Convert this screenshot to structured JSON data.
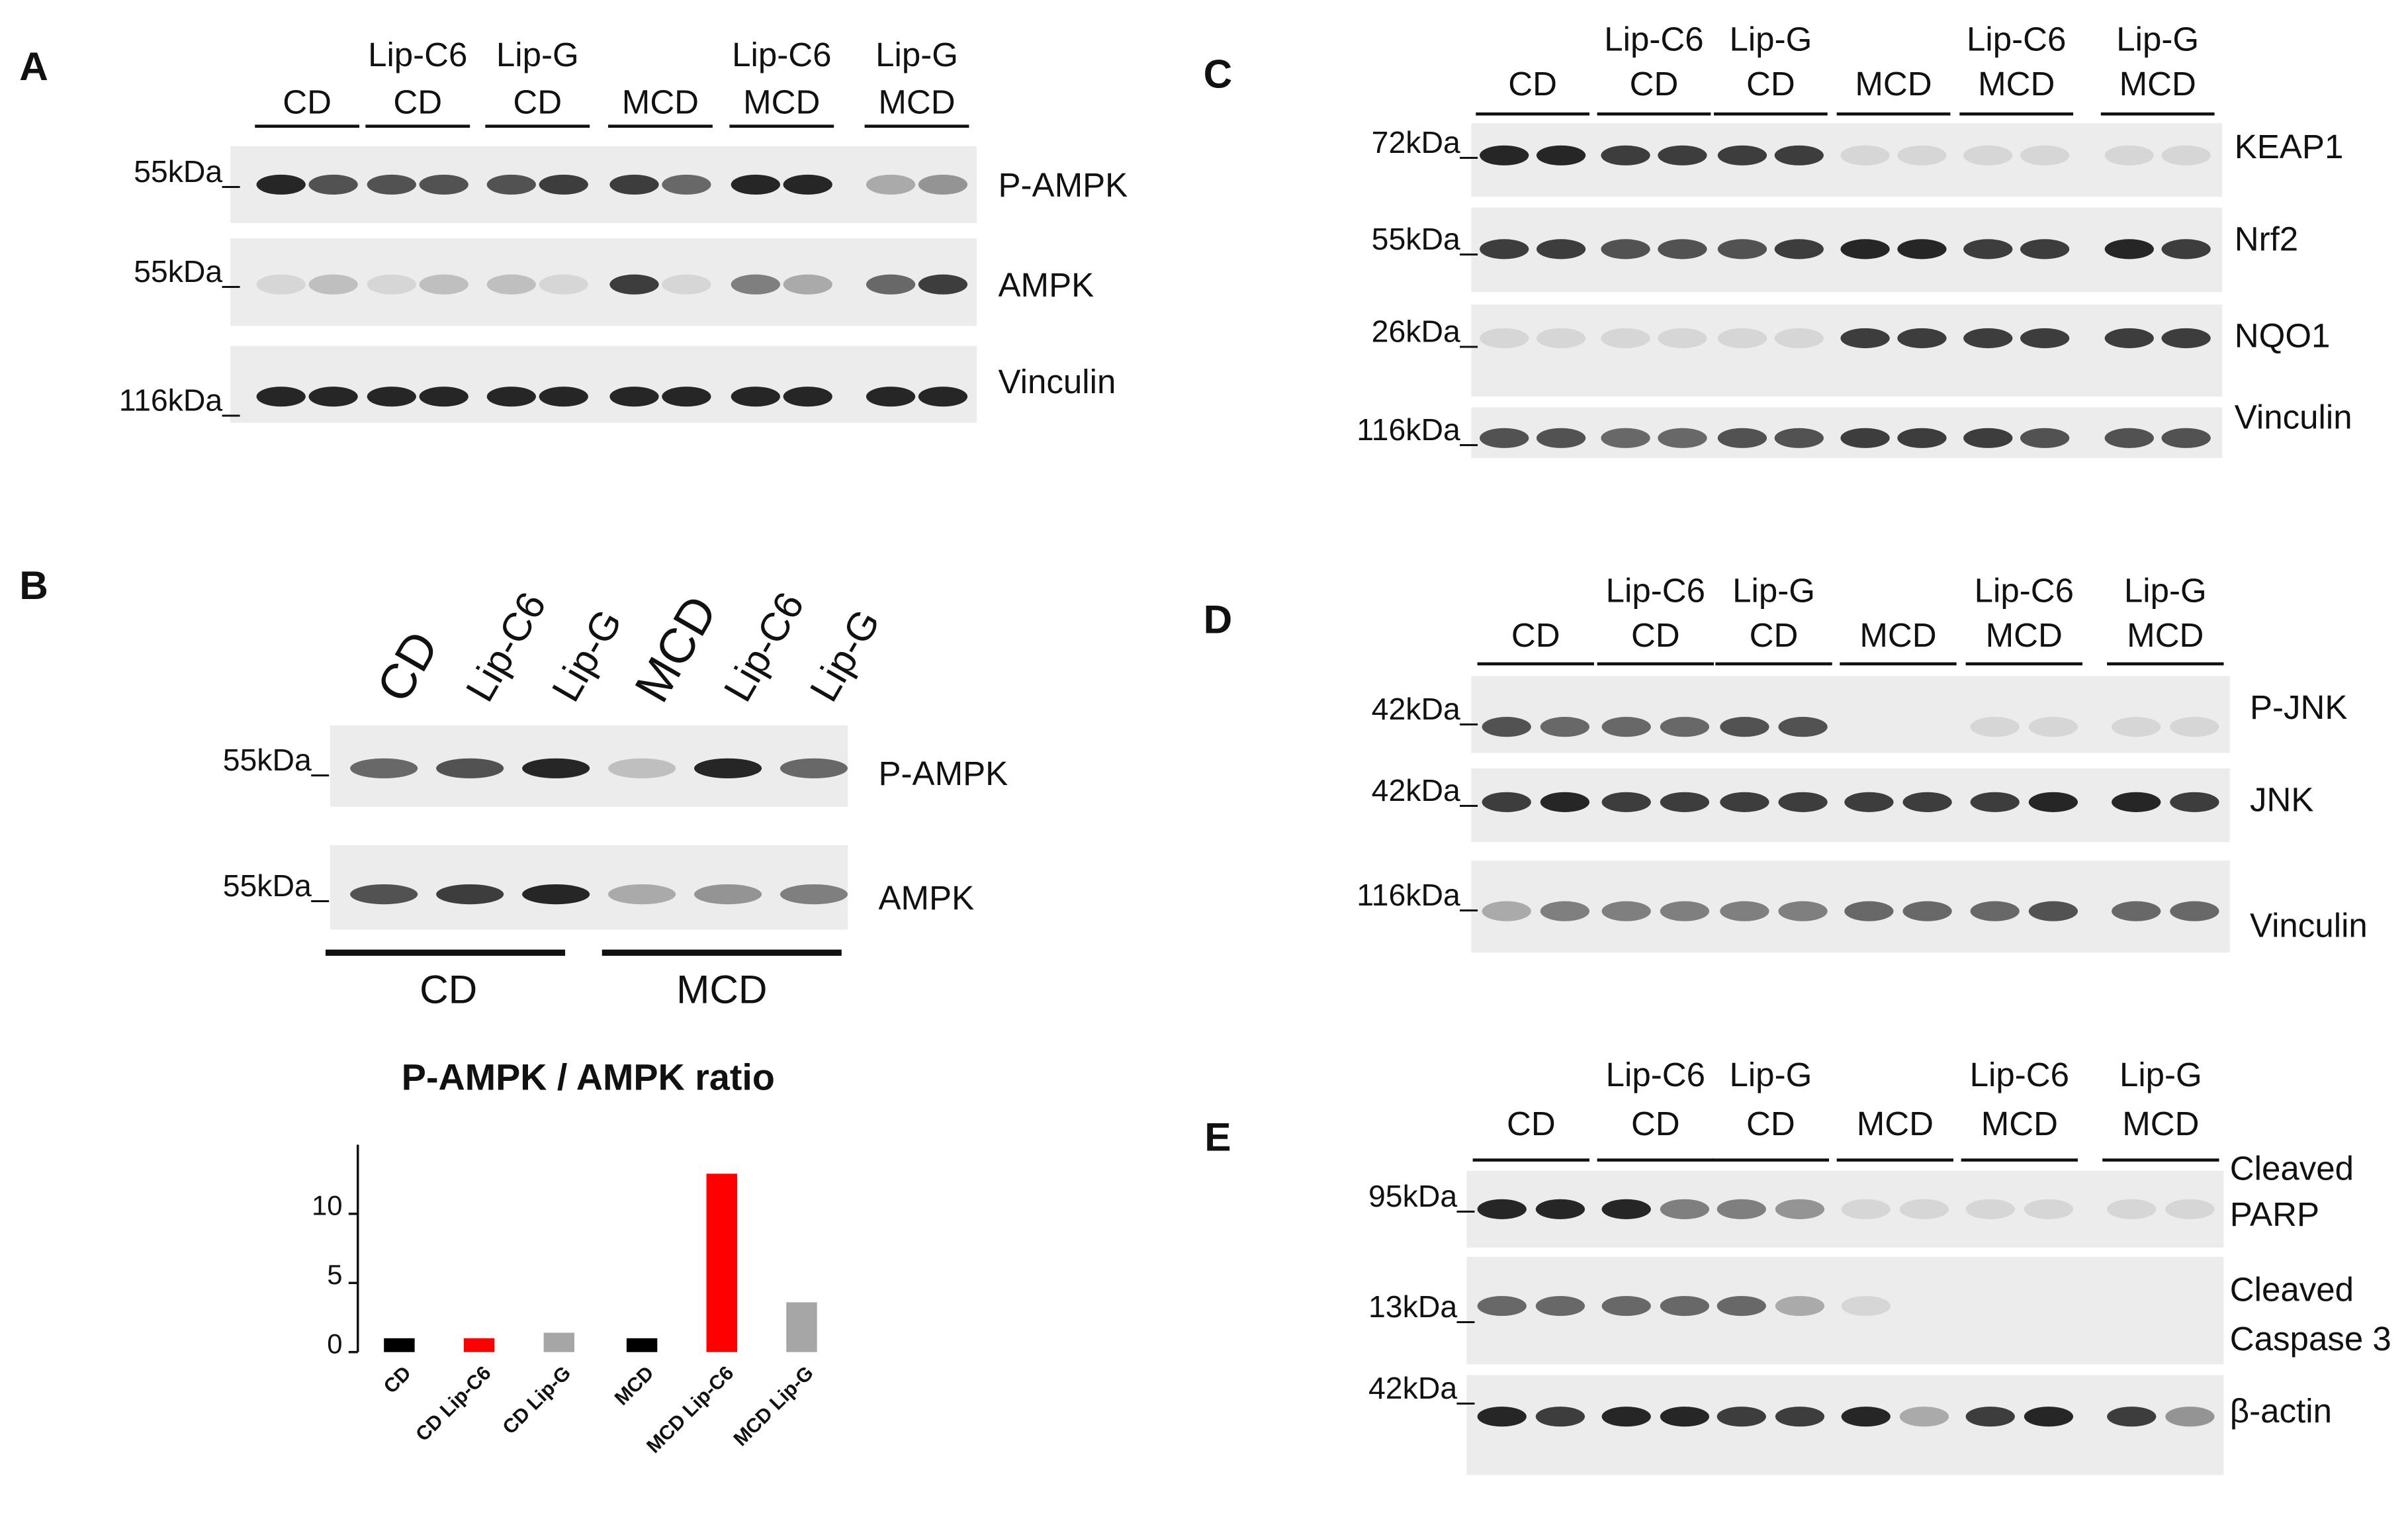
{
  "figure": {
    "panels": [
      {
        "label": "A",
        "groups": [
          [
            "CD"
          ],
          [
            "Lip-C6",
            "CD"
          ],
          [
            "Lip-G",
            "CD"
          ],
          [
            "MCD"
          ],
          [
            "Lip-C6",
            "MCD"
          ],
          [
            "Lip-G",
            "MCD"
          ]
        ],
        "rows": [
          {
            "marker": "55kDa_",
            "name": [
              "P-AMPK"
            ]
          },
          {
            "marker": "55kDa_",
            "name": [
              "AMPK"
            ]
          },
          {
            "marker": "116kDa_",
            "name": [
              "Vinculin"
            ]
          }
        ]
      },
      {
        "label": "C",
        "groups": [
          [
            "CD"
          ],
          [
            "Lip-C6",
            "CD"
          ],
          [
            "Lip-G",
            "CD"
          ],
          [
            "MCD"
          ],
          [
            "Lip-C6",
            "MCD"
          ],
          [
            "Lip-G",
            "MCD"
          ]
        ],
        "rows": [
          {
            "marker": "72kDa_",
            "name": [
              "KEAP1"
            ]
          },
          {
            "marker": "55kDa_",
            "name": [
              "Nrf2"
            ]
          },
          {
            "marker": "26kDa_",
            "name": [
              "NQO1"
            ]
          },
          {
            "marker": "116kDa_",
            "name": [
              "Vinculin"
            ]
          }
        ]
      },
      {
        "label": "D",
        "groups": [
          [
            "CD"
          ],
          [
            "Lip-C6",
            "CD"
          ],
          [
            "Lip-G",
            "CD"
          ],
          [
            "MCD"
          ],
          [
            "Lip-C6",
            "MCD"
          ],
          [
            "Lip-G",
            "MCD"
          ]
        ],
        "rows": [
          {
            "marker": "42kDa_",
            "name": [
              "P-JNK"
            ]
          },
          {
            "marker": "42kDa_",
            "name": [
              "JNK"
            ]
          },
          {
            "marker": "116kDa_",
            "name": [
              "Vinculin"
            ]
          }
        ]
      },
      {
        "label": "E",
        "groups": [
          [
            "CD"
          ],
          [
            "Lip-C6",
            "CD"
          ],
          [
            "Lip-G",
            "CD"
          ],
          [
            "MCD"
          ],
          [
            "Lip-C6",
            "MCD"
          ],
          [
            "Lip-G",
            "MCD"
          ]
        ],
        "rows": [
          {
            "marker": "95kDa_",
            "name": [
              "Cleaved",
              "PARP"
            ]
          },
          {
            "marker": "13kDa_",
            "name": [
              "Cleaved",
              "Caspase 3"
            ]
          },
          {
            "marker": "42kDa_",
            "name": [
              "β-actin"
            ]
          }
        ]
      }
    ],
    "panel_b": {
      "label": "B",
      "lanes": [
        "CD",
        "Lip-C6",
        "Lip-G",
        "MCD",
        "Lip-C6",
        "Lip-G"
      ],
      "rows": [
        {
          "marker": "55kDa_",
          "name": "P-AMPK"
        },
        {
          "marker": "55kDa_",
          "name": "AMPK"
        }
      ],
      "groups": [
        "CD",
        "MCD"
      ]
    }
  },
  "chart_data": {
    "type": "bar",
    "title": "P-AMPK / AMPK ratio",
    "categories": [
      "CD",
      "CD Lip-C6",
      "CD Lip-G",
      "MCD",
      "MCD Lip-C6",
      "MCD Lip-G"
    ],
    "values": [
      1,
      1,
      1.4,
      1,
      12.9,
      3.6
    ],
    "colors": [
      "#000000",
      "#ff0000",
      "#a6a6a6",
      "#000000",
      "#ff0000",
      "#a6a6a6"
    ],
    "ylim": [
      0,
      15
    ],
    "yticks": [
      0,
      5,
      10
    ]
  }
}
